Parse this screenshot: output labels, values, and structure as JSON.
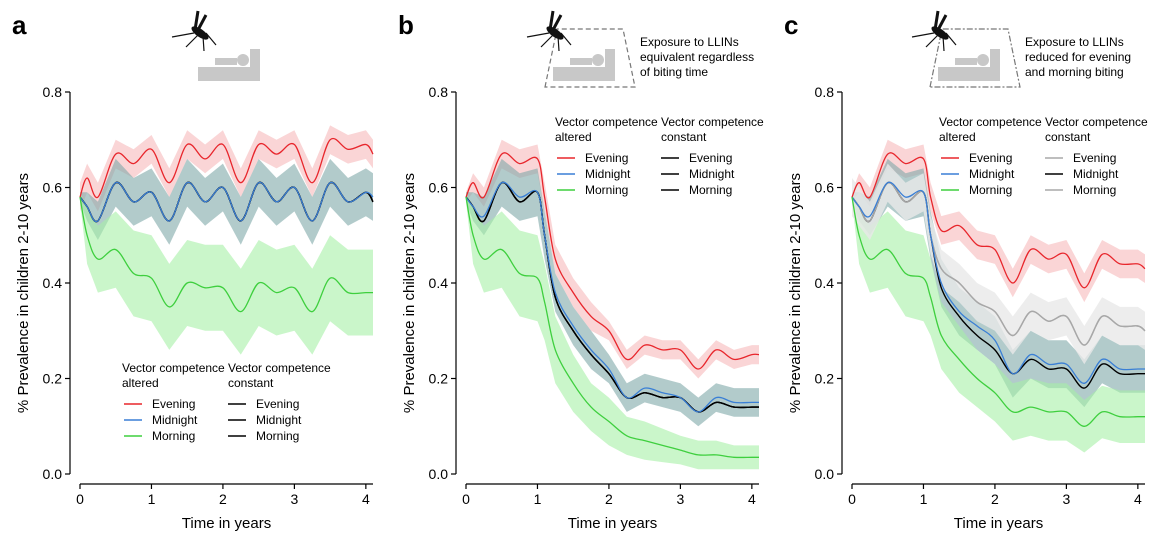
{
  "axis": {
    "xlabel": "Time in years",
    "ylabel": "% Prevalence in children 2-10 years",
    "xlim": [
      0,
      4.1
    ],
    "ylim": [
      0,
      0.8
    ],
    "xticks": [
      "0",
      "1",
      "2",
      "3",
      "4"
    ],
    "yticks": [
      "0.0",
      "0.2",
      "0.4",
      "0.6",
      "0.8"
    ],
    "grid": false
  },
  "legend_labels": {
    "altered_1": "Vector competence",
    "altered_2": "altered",
    "constant_1": "Vector competence",
    "constant_2": "constant",
    "evening": "Evening",
    "midnight": "Midnight",
    "morning": "Morning"
  },
  "colors": {
    "evening": "#e8262c",
    "midnight": "#3a7fd5",
    "morning": "#3ecf3e",
    "constant": "#000000",
    "constant_faded": "#a8a8a8",
    "band_evening": "#f6b9bb",
    "band_midnight": "#7fa9a9",
    "band_morning": "#a6f0a6",
    "band_grey": "#e9e9e9"
  },
  "panels": [
    {
      "letter": "a",
      "note_lines": [],
      "icon": "mosquito-bed-icon"
    },
    {
      "letter": "b",
      "note_lines": [
        "Exposure to LLINs",
        "equivalent regardless",
        "of biting time"
      ],
      "icon": "mosquito-net-bed-icon"
    },
    {
      "letter": "c",
      "note_lines": [
        "Exposure to LLINs",
        "reduced for evening",
        "and morning biting"
      ],
      "icon": "mosquito-net-bed-icon"
    }
  ],
  "chart_data": [
    {
      "type": "line",
      "title": "",
      "xlabel": "Time in years",
      "ylabel": "% Prevalence in children 2-10 years",
      "xlim": [
        0,
        4.1
      ],
      "ylim": [
        0,
        0.8
      ],
      "x": [
        0,
        0.1,
        0.25,
        0.5,
        0.75,
        1,
        1.25,
        1.5,
        1.75,
        2,
        2.25,
        2.5,
        2.75,
        3,
        3.25,
        3.5,
        3.75,
        4,
        4.1
      ],
      "series": [
        {
          "name": "Evening",
          "group": "Vector competence altered",
          "color_key": "evening",
          "values": [
            0.58,
            0.62,
            0.58,
            0.67,
            0.65,
            0.68,
            0.61,
            0.69,
            0.66,
            0.69,
            0.61,
            0.69,
            0.67,
            0.69,
            0.61,
            0.7,
            0.68,
            0.69,
            0.67
          ],
          "band": [
            0.03,
            0.03,
            0.03,
            0.03,
            0.03,
            0.03,
            0.03,
            0.03,
            0.03,
            0.03,
            0.03,
            0.03,
            0.03,
            0.03,
            0.03,
            0.03,
            0.03,
            0.03,
            0.03
          ]
        },
        {
          "name": "Midnight",
          "group": "Vector competence altered",
          "color_key": "midnight",
          "values": [
            0.58,
            0.56,
            0.53,
            0.61,
            0.57,
            0.59,
            0.53,
            0.61,
            0.57,
            0.6,
            0.53,
            0.61,
            0.57,
            0.6,
            0.53,
            0.61,
            0.57,
            0.59,
            0.58
          ],
          "band": [
            0.01,
            0.03,
            0.04,
            0.05,
            0.05,
            0.05,
            0.05,
            0.05,
            0.05,
            0.05,
            0.05,
            0.05,
            0.05,
            0.05,
            0.05,
            0.05,
            0.05,
            0.05,
            0.05
          ]
        },
        {
          "name": "Morning",
          "group": "Vector competence altered",
          "color_key": "morning",
          "values": [
            0.58,
            0.5,
            0.45,
            0.47,
            0.42,
            0.41,
            0.35,
            0.4,
            0.39,
            0.39,
            0.34,
            0.4,
            0.38,
            0.39,
            0.34,
            0.41,
            0.38,
            0.38,
            0.38
          ],
          "band": [
            0.01,
            0.06,
            0.07,
            0.08,
            0.09,
            0.09,
            0.09,
            0.09,
            0.09,
            0.09,
            0.09,
            0.09,
            0.09,
            0.09,
            0.09,
            0.09,
            0.09,
            0.09,
            0.09
          ]
        },
        {
          "name": "Evening",
          "group": "Vector competence constant",
          "color_key": "constant",
          "values": [
            0.58,
            0.56,
            0.53,
            0.61,
            0.57,
            0.59,
            0.53,
            0.61,
            0.57,
            0.6,
            0.53,
            0.61,
            0.57,
            0.6,
            0.53,
            0.61,
            0.57,
            0.59,
            0.57
          ]
        },
        {
          "name": "Midnight",
          "group": "Vector competence constant",
          "color_key": "constant",
          "values": [
            0.58,
            0.56,
            0.53,
            0.61,
            0.57,
            0.59,
            0.53,
            0.61,
            0.57,
            0.6,
            0.53,
            0.61,
            0.57,
            0.6,
            0.53,
            0.61,
            0.57,
            0.59,
            0.57
          ]
        },
        {
          "name": "Morning",
          "group": "Vector competence constant",
          "color_key": "constant",
          "values": [
            0.58,
            0.56,
            0.53,
            0.61,
            0.57,
            0.59,
            0.53,
            0.61,
            0.57,
            0.6,
            0.53,
            0.61,
            0.57,
            0.6,
            0.53,
            0.61,
            0.57,
            0.59,
            0.57
          ]
        }
      ],
      "legend": "bottom-center"
    },
    {
      "type": "line",
      "title": "",
      "xlabel": "Time in years",
      "ylabel": "% Prevalence in children 2-10 years",
      "xlim": [
        0,
        4.1
      ],
      "ylim": [
        0,
        0.8
      ],
      "x": [
        0,
        0.1,
        0.25,
        0.5,
        0.75,
        1,
        1.1,
        1.25,
        1.5,
        1.75,
        2,
        2.25,
        2.5,
        2.75,
        3,
        3.25,
        3.5,
        3.75,
        4,
        4.1
      ],
      "series": [
        {
          "name": "Evening",
          "group": "Vector competence altered",
          "color_key": "evening",
          "values": [
            0.58,
            0.61,
            0.58,
            0.67,
            0.65,
            0.66,
            0.58,
            0.45,
            0.38,
            0.33,
            0.3,
            0.24,
            0.27,
            0.26,
            0.26,
            0.22,
            0.26,
            0.24,
            0.25,
            0.25
          ],
          "band": [
            0.01,
            0.02,
            0.02,
            0.03,
            0.03,
            0.03,
            0.03,
            0.03,
            0.03,
            0.03,
            0.02,
            0.02,
            0.02,
            0.02,
            0.02,
            0.02,
            0.02,
            0.02,
            0.02,
            0.02
          ]
        },
        {
          "name": "Midnight",
          "group": "Vector competence altered",
          "color_key": "midnight",
          "values": [
            0.58,
            0.56,
            0.54,
            0.61,
            0.58,
            0.59,
            0.5,
            0.38,
            0.31,
            0.26,
            0.22,
            0.16,
            0.18,
            0.17,
            0.16,
            0.13,
            0.16,
            0.15,
            0.15,
            0.15
          ],
          "band": [
            0.01,
            0.03,
            0.04,
            0.05,
            0.05,
            0.05,
            0.05,
            0.04,
            0.04,
            0.04,
            0.03,
            0.03,
            0.03,
            0.03,
            0.03,
            0.03,
            0.03,
            0.03,
            0.03,
            0.03
          ]
        },
        {
          "name": "Morning",
          "group": "Vector competence altered",
          "color_key": "morning",
          "values": [
            0.58,
            0.5,
            0.45,
            0.47,
            0.42,
            0.41,
            0.36,
            0.26,
            0.19,
            0.14,
            0.11,
            0.08,
            0.07,
            0.06,
            0.05,
            0.04,
            0.04,
            0.035,
            0.035,
            0.035
          ],
          "band": [
            0.01,
            0.06,
            0.07,
            0.08,
            0.09,
            0.09,
            0.08,
            0.07,
            0.06,
            0.05,
            0.05,
            0.04,
            0.04,
            0.035,
            0.03,
            0.03,
            0.03,
            0.025,
            0.025,
            0.025
          ]
        },
        {
          "name": "Evening",
          "group": "Vector competence constant",
          "color_key": "constant",
          "values": [
            0.58,
            0.56,
            0.53,
            0.61,
            0.57,
            0.59,
            0.5,
            0.37,
            0.3,
            0.25,
            0.21,
            0.16,
            0.17,
            0.16,
            0.16,
            0.13,
            0.15,
            0.14,
            0.14,
            0.14
          ]
        },
        {
          "name": "Midnight",
          "group": "Vector competence constant",
          "color_key": "constant",
          "values": [
            0.58,
            0.56,
            0.53,
            0.61,
            0.57,
            0.59,
            0.5,
            0.37,
            0.3,
            0.25,
            0.21,
            0.16,
            0.17,
            0.16,
            0.16,
            0.13,
            0.15,
            0.14,
            0.14,
            0.14
          ]
        },
        {
          "name": "Morning",
          "group": "Vector competence constant",
          "color_key": "constant",
          "values": [
            0.58,
            0.56,
            0.53,
            0.61,
            0.57,
            0.59,
            0.5,
            0.37,
            0.3,
            0.25,
            0.21,
            0.16,
            0.17,
            0.16,
            0.16,
            0.13,
            0.15,
            0.14,
            0.14,
            0.14
          ]
        }
      ],
      "legend": "top-right"
    },
    {
      "type": "line",
      "title": "",
      "xlabel": "Time in years",
      "ylabel": "% Prevalence in children 2-10 years",
      "xlim": [
        0,
        4.1
      ],
      "ylim": [
        0,
        0.8
      ],
      "x": [
        0,
        0.1,
        0.25,
        0.5,
        0.75,
        1,
        1.1,
        1.25,
        1.5,
        1.75,
        2,
        2.25,
        2.5,
        2.75,
        3,
        3.25,
        3.5,
        3.75,
        4,
        4.1
      ],
      "series": [
        {
          "name": "Evening",
          "group": "Vector competence altered",
          "color_key": "evening",
          "values": [
            0.58,
            0.61,
            0.58,
            0.67,
            0.65,
            0.66,
            0.58,
            0.51,
            0.52,
            0.48,
            0.47,
            0.4,
            0.47,
            0.45,
            0.46,
            0.39,
            0.46,
            0.44,
            0.44,
            0.43
          ],
          "band": [
            0.01,
            0.02,
            0.02,
            0.03,
            0.03,
            0.03,
            0.03,
            0.03,
            0.03,
            0.03,
            0.03,
            0.03,
            0.03,
            0.03,
            0.03,
            0.03,
            0.03,
            0.03,
            0.03,
            0.03
          ]
        },
        {
          "name": "Midnight",
          "group": "Vector competence altered",
          "color_key": "midnight",
          "values": [
            0.58,
            0.56,
            0.54,
            0.61,
            0.58,
            0.59,
            0.5,
            0.4,
            0.34,
            0.31,
            0.28,
            0.21,
            0.25,
            0.23,
            0.23,
            0.19,
            0.24,
            0.22,
            0.22,
            0.22
          ],
          "band": [
            0.01,
            0.03,
            0.04,
            0.05,
            0.05,
            0.05,
            0.05,
            0.05,
            0.05,
            0.05,
            0.05,
            0.05,
            0.05,
            0.05,
            0.05,
            0.05,
            0.05,
            0.05,
            0.05,
            0.05
          ]
        },
        {
          "name": "Morning",
          "group": "Vector competence altered",
          "color_key": "morning",
          "values": [
            0.58,
            0.5,
            0.45,
            0.47,
            0.42,
            0.41,
            0.37,
            0.29,
            0.24,
            0.2,
            0.17,
            0.13,
            0.14,
            0.13,
            0.13,
            0.1,
            0.13,
            0.12,
            0.12,
            0.12
          ],
          "band": [
            0.01,
            0.06,
            0.07,
            0.08,
            0.09,
            0.09,
            0.08,
            0.07,
            0.07,
            0.06,
            0.06,
            0.06,
            0.06,
            0.06,
            0.06,
            0.055,
            0.055,
            0.055,
            0.055,
            0.055
          ]
        },
        {
          "name": "Evening",
          "group": "Vector competence constant",
          "color_key": "constant_faded",
          "values": [
            0.58,
            0.56,
            0.53,
            0.61,
            0.57,
            0.59,
            0.5,
            0.43,
            0.4,
            0.36,
            0.34,
            0.29,
            0.34,
            0.32,
            0.33,
            0.27,
            0.33,
            0.31,
            0.31,
            0.3
          ]
        },
        {
          "name": "Midnight",
          "group": "Vector competence constant",
          "color_key": "constant",
          "values": [
            0.58,
            0.56,
            0.53,
            0.61,
            0.57,
            0.59,
            0.5,
            0.39,
            0.33,
            0.29,
            0.26,
            0.21,
            0.24,
            0.22,
            0.22,
            0.18,
            0.23,
            0.21,
            0.21,
            0.21
          ]
        },
        {
          "name": "Morning",
          "group": "Vector competence constant",
          "color_key": "constant_faded",
          "values": [
            0.58,
            0.56,
            0.53,
            0.61,
            0.57,
            0.59,
            0.5,
            0.43,
            0.4,
            0.36,
            0.34,
            0.29,
            0.34,
            0.32,
            0.33,
            0.27,
            0.33,
            0.31,
            0.31,
            0.3
          ]
        }
      ],
      "legend": "top-right"
    }
  ]
}
